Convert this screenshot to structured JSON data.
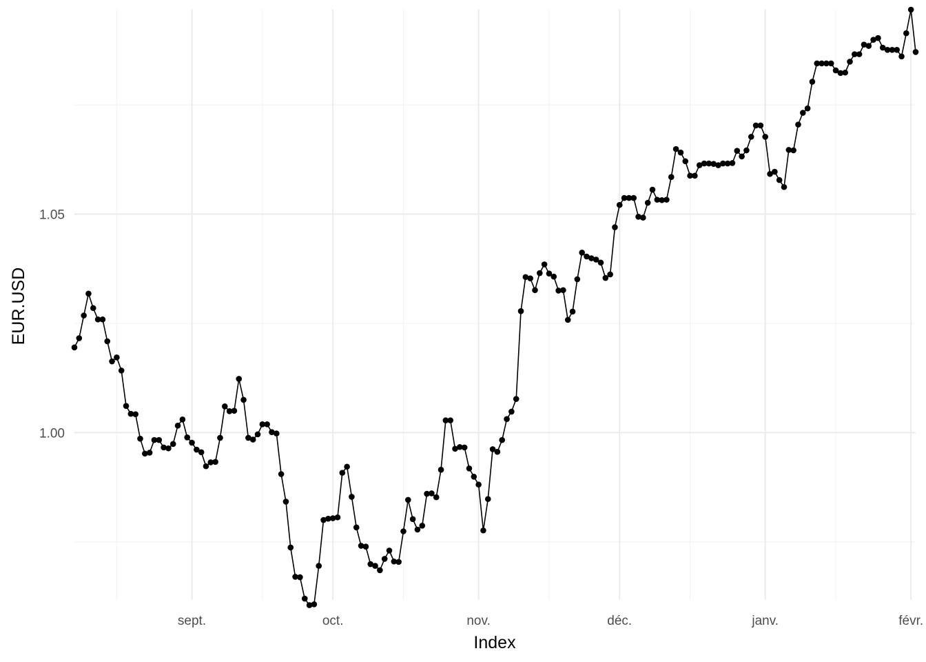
{
  "chart_data": {
    "type": "line",
    "xlabel": "Index",
    "ylabel": "EUR.USD",
    "x_tick_labels": [
      "sept.",
      "oct.",
      "nov.",
      "déc.",
      "janv.",
      "févr."
    ],
    "x_tick_dates": [
      "2022-09-01",
      "2022-10-01",
      "2022-11-01",
      "2022-12-01",
      "2023-01-01",
      "2023-02-01"
    ],
    "y_tick_labels": [
      "1.00",
      "1.05"
    ],
    "y_ticks": [
      1.0,
      1.05
    ],
    "y_minor_ticks": [
      0.975,
      1.025,
      1.075
    ],
    "x_minor_dates": [
      "2022-08-16",
      "2022-09-16",
      "2022-10-16",
      "2022-11-16",
      "2022-12-16",
      "2023-01-16"
    ],
    "xlim": [
      "2022-08-07",
      "2023-02-02"
    ],
    "ylim": [
      0.9617,
      1.0968
    ],
    "grid": true,
    "markers": true,
    "line_color": "#000000",
    "series": [
      {
        "x": [
          "2022-08-07",
          "2022-08-08",
          "2022-08-09",
          "2022-08-10",
          "2022-08-11",
          "2022-08-12",
          "2022-08-13",
          "2022-08-14",
          "2022-08-15",
          "2022-08-16",
          "2022-08-17",
          "2022-08-18",
          "2022-08-19",
          "2022-08-20",
          "2022-08-21",
          "2022-08-22",
          "2022-08-23",
          "2022-08-24",
          "2022-08-25",
          "2022-08-26",
          "2022-08-27",
          "2022-08-28",
          "2022-08-29",
          "2022-08-30",
          "2022-08-31",
          "2022-09-01",
          "2022-09-02",
          "2022-09-03",
          "2022-09-04",
          "2022-09-05",
          "2022-09-06",
          "2022-09-07",
          "2022-09-08",
          "2022-09-09",
          "2022-09-10",
          "2022-09-11",
          "2022-09-12",
          "2022-09-13",
          "2022-09-14",
          "2022-09-15",
          "2022-09-16",
          "2022-09-17",
          "2022-09-18",
          "2022-09-19",
          "2022-09-20",
          "2022-09-21",
          "2022-09-22",
          "2022-09-23",
          "2022-09-24",
          "2022-09-25",
          "2022-09-26",
          "2022-09-27",
          "2022-09-28",
          "2022-09-29",
          "2022-09-30",
          "2022-10-01",
          "2022-10-02",
          "2022-10-03",
          "2022-10-04",
          "2022-10-05",
          "2022-10-06",
          "2022-10-07",
          "2022-10-08",
          "2022-10-09",
          "2022-10-10",
          "2022-10-11",
          "2022-10-12",
          "2022-10-13",
          "2022-10-14",
          "2022-10-15",
          "2022-10-16",
          "2022-10-17",
          "2022-10-18",
          "2022-10-19",
          "2022-10-20",
          "2022-10-21",
          "2022-10-22",
          "2022-10-23",
          "2022-10-24",
          "2022-10-25",
          "2022-10-26",
          "2022-10-27",
          "2022-10-28",
          "2022-10-29",
          "2022-10-30",
          "2022-10-31",
          "2022-11-01",
          "2022-11-02",
          "2022-11-03",
          "2022-11-04",
          "2022-11-05",
          "2022-11-06",
          "2022-11-07",
          "2022-11-08",
          "2022-11-09",
          "2022-11-10",
          "2022-11-11",
          "2022-11-12",
          "2022-11-13",
          "2022-11-14",
          "2022-11-15",
          "2022-11-16",
          "2022-11-17",
          "2022-11-18",
          "2022-11-19",
          "2022-11-20",
          "2022-11-21",
          "2022-11-22",
          "2022-11-23",
          "2022-11-24",
          "2022-11-25",
          "2022-11-26",
          "2022-11-27",
          "2022-11-28",
          "2022-11-29",
          "2022-11-30",
          "2022-12-01",
          "2022-12-02",
          "2022-12-03",
          "2022-12-04",
          "2022-12-05",
          "2022-12-06",
          "2022-12-07",
          "2022-12-08",
          "2022-12-09",
          "2022-12-10",
          "2022-12-11",
          "2022-12-12",
          "2022-12-13",
          "2022-12-14",
          "2022-12-15",
          "2022-12-16",
          "2022-12-17",
          "2022-12-18",
          "2022-12-19",
          "2022-12-20",
          "2022-12-21",
          "2022-12-22",
          "2022-12-23",
          "2022-12-24",
          "2022-12-25",
          "2022-12-26",
          "2022-12-27",
          "2022-12-28",
          "2022-12-29",
          "2022-12-30",
          "2022-12-31",
          "2023-01-01",
          "2023-01-02",
          "2023-01-03",
          "2023-01-04",
          "2023-01-05",
          "2023-01-06",
          "2023-01-07",
          "2023-01-08",
          "2023-01-09",
          "2023-01-10",
          "2023-01-11",
          "2023-01-12",
          "2023-01-13",
          "2023-01-14",
          "2023-01-15",
          "2023-01-16",
          "2023-01-17",
          "2023-01-18",
          "2023-01-19",
          "2023-01-20",
          "2023-01-21",
          "2023-01-22",
          "2023-01-23",
          "2023-01-24",
          "2023-01-25",
          "2023-01-26",
          "2023-01-27",
          "2023-01-28",
          "2023-01-29",
          "2023-01-30",
          "2023-01-31",
          "2023-02-01",
          "2023-02-02"
        ],
        "values": [
          1.0195,
          1.0216,
          1.0268,
          1.0318,
          1.0285,
          1.0259,
          1.0259,
          1.0209,
          1.0163,
          1.0172,
          1.0142,
          1.0061,
          1.0043,
          1.0042,
          0.9986,
          0.9952,
          0.9954,
          0.9983,
          0.9983,
          0.9966,
          0.9964,
          0.9974,
          1.0016,
          1.003,
          0.9989,
          0.9977,
          0.9961,
          0.9955,
          0.9923,
          0.9932,
          0.9933,
          0.9988,
          1.006,
          1.0049,
          1.005,
          1.0123,
          1.0075,
          0.9988,
          0.9984,
          0.9996,
          1.0019,
          1.0019,
          1.0001,
          0.9998,
          0.9905,
          0.9842,
          0.9737,
          0.967,
          0.9669,
          0.962,
          0.9605,
          0.9607,
          0.9695,
          0.98,
          0.9803,
          0.9804,
          0.9806,
          0.9908,
          0.9922,
          0.9853,
          0.9783,
          0.9741,
          0.9739,
          0.9699,
          0.9695,
          0.9685,
          0.9711,
          0.973,
          0.9705,
          0.9704,
          0.9774,
          0.9846,
          0.9802,
          0.9778,
          0.9787,
          0.986,
          0.9861,
          0.9852,
          0.9915,
          1.0028,
          1.0028,
          0.9963,
          0.9967,
          0.9966,
          0.9918,
          0.9899,
          0.9881,
          0.9776,
          0.9848,
          0.9962,
          0.9956,
          0.9983,
          1.0031,
          1.0048,
          1.0077,
          1.0278,
          1.0356,
          1.0353,
          1.0326,
          1.0365,
          1.0385,
          1.0364,
          1.0357,
          1.0325,
          1.0326,
          1.0258,
          1.0277,
          1.0351,
          1.0412,
          1.0403,
          1.0399,
          1.0396,
          1.0389,
          1.0354,
          1.0362,
          1.047,
          1.0521,
          1.0537,
          1.0537,
          1.0537,
          1.0494,
          1.0492,
          1.0526,
          1.0556,
          1.0533,
          1.0532,
          1.0533,
          1.0585,
          1.0649,
          1.0641,
          1.0621,
          1.0588,
          1.0588,
          1.0612,
          1.0616,
          1.0616,
          1.0615,
          1.0612,
          1.0616,
          1.0616,
          1.0617,
          1.0645,
          1.0632,
          1.0646,
          1.0677,
          1.0703,
          1.0703,
          1.0677,
          1.0592,
          1.0597,
          1.0578,
          1.0562,
          1.0647,
          1.0646,
          1.0705,
          1.0732,
          1.0742,
          1.0803,
          1.0845,
          1.0845,
          1.0845,
          1.0845,
          1.0829,
          1.0823,
          1.0824,
          1.0849,
          1.0866,
          1.0866,
          1.0888,
          1.0885,
          1.0899,
          1.0903,
          1.0881,
          1.0876,
          1.0876,
          1.0876,
          1.0861,
          1.0914,
          1.0968,
          1.0871
        ]
      }
    ]
  }
}
